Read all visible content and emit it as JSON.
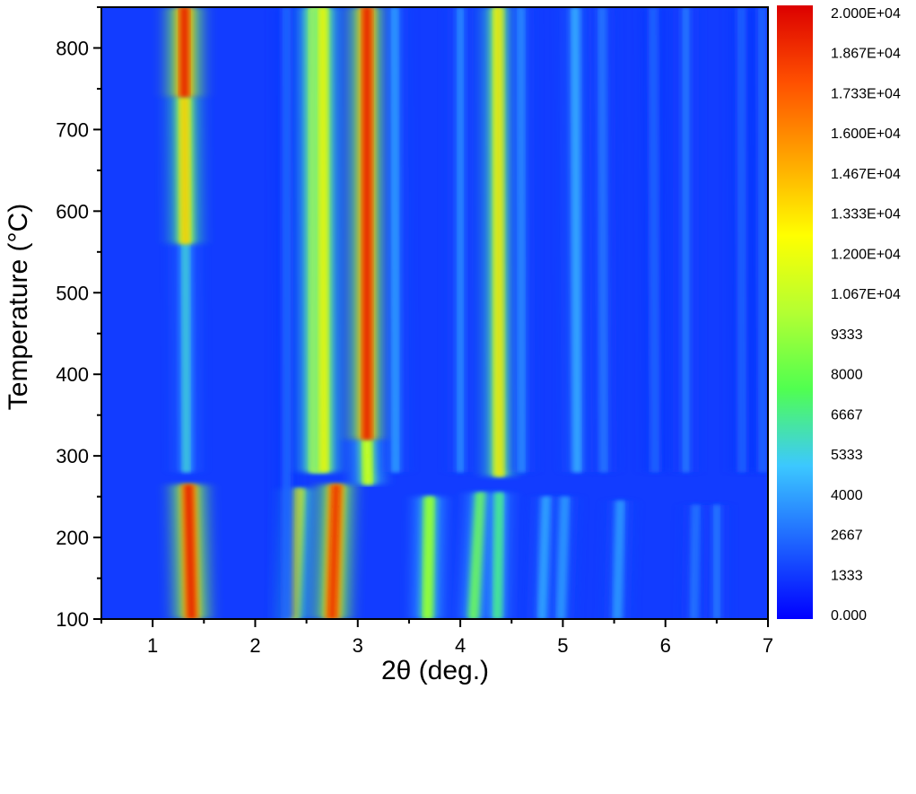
{
  "chart_data": {
    "type": "heatmap",
    "title": "",
    "xlabel": "2θ (deg.)",
    "ylabel": "Temperature (°C)",
    "xlim": [
      0.5,
      7
    ],
    "ylim": [
      100,
      850
    ],
    "x_ticks": [
      "1",
      "2",
      "3",
      "4",
      "5",
      "6",
      "7"
    ],
    "x_tick_values": [
      1,
      2,
      3,
      4,
      5,
      6,
      7
    ],
    "y_ticks": [
      "100",
      "200",
      "300",
      "400",
      "500",
      "600",
      "700",
      "800"
    ],
    "y_tick_values": [
      100,
      200,
      300,
      400,
      500,
      600,
      700,
      800
    ],
    "colorbar": {
      "min": 0,
      "max": 20000,
      "labels": [
        "2.000E+04",
        "1.867E+04",
        "1.733E+04",
        "1.600E+04",
        "1.467E+04",
        "1.333E+04",
        "1.200E+04",
        "1.067E+04",
        "9333",
        "8000",
        "6667",
        "5333",
        "4000",
        "2667",
        "1333",
        "0.000"
      ],
      "label_values": [
        20000,
        18670,
        17330,
        16000,
        14670,
        13330,
        12000,
        10670,
        9333,
        8000,
        6667,
        5333,
        4000,
        2667,
        1333,
        0
      ],
      "colors": [
        "#0000ff",
        "#1e64ff",
        "#3cc8ff",
        "#50ff50",
        "#b4ff32",
        "#ffff00",
        "#ffa500",
        "#ff5000",
        "#dc0000"
      ]
    },
    "background_intensity": 1500,
    "peaks": [
      {
        "x_start": 1.38,
        "x_end": 1.35,
        "y_start": 100,
        "y_end": 265,
        "intensity": 20000
      },
      {
        "x_start": 1.33,
        "x_end": 1.32,
        "y_start": 280,
        "y_end": 560,
        "intensity": 6000
      },
      {
        "x_start": 1.32,
        "x_end": 1.31,
        "y_start": 560,
        "y_end": 740,
        "intensity": 14500
      },
      {
        "x_start": 1.31,
        "x_end": 1.31,
        "y_start": 740,
        "y_end": 850,
        "intensity": 20000
      },
      {
        "x_start": 2.37,
        "x_end": 2.42,
        "y_start": 100,
        "y_end": 260,
        "intensity": 13000
      },
      {
        "x_start": 2.31,
        "x_end": 2.3,
        "y_start": 100,
        "y_end": 850,
        "intensity": 3000
      },
      {
        "x_start": 2.75,
        "x_end": 2.79,
        "y_start": 100,
        "y_end": 265,
        "intensity": 19500
      },
      {
        "x_start": 2.58,
        "x_end": 2.57,
        "y_start": 280,
        "y_end": 850,
        "intensity": 12500
      },
      {
        "x_start": 2.67,
        "x_end": 2.66,
        "y_start": 280,
        "y_end": 850,
        "intensity": 13000
      },
      {
        "x_start": 3.1,
        "x_end": 3.09,
        "y_start": 265,
        "y_end": 320,
        "intensity": 12000
      },
      {
        "x_start": 3.09,
        "x_end": 3.09,
        "y_start": 320,
        "y_end": 850,
        "intensity": 20000
      },
      {
        "x_start": 3.37,
        "x_end": 3.36,
        "y_start": 280,
        "y_end": 850,
        "intensity": 4500
      },
      {
        "x_start": 3.68,
        "x_end": 3.7,
        "y_start": 100,
        "y_end": 250,
        "intensity": 10500
      },
      {
        "x_start": 4.0,
        "x_end": 4.0,
        "y_start": 280,
        "y_end": 850,
        "intensity": 4000
      },
      {
        "x_start": 4.13,
        "x_end": 4.2,
        "y_start": 100,
        "y_end": 255,
        "intensity": 9000
      },
      {
        "x_start": 4.36,
        "x_end": 4.38,
        "y_start": 100,
        "y_end": 255,
        "intensity": 7500
      },
      {
        "x_start": 4.38,
        "x_end": 4.37,
        "y_start": 275,
        "y_end": 850,
        "intensity": 13500
      },
      {
        "x_start": 4.6,
        "x_end": 4.59,
        "y_start": 280,
        "y_end": 850,
        "intensity": 4000
      },
      {
        "x_start": 4.8,
        "x_end": 4.84,
        "y_start": 100,
        "y_end": 250,
        "intensity": 5000
      },
      {
        "x_start": 4.98,
        "x_end": 5.02,
        "y_start": 100,
        "y_end": 250,
        "intensity": 4500
      },
      {
        "x_start": 5.14,
        "x_end": 5.12,
        "y_start": 280,
        "y_end": 850,
        "intensity": 5000
      },
      {
        "x_start": 5.4,
        "x_end": 5.38,
        "y_start": 280,
        "y_end": 850,
        "intensity": 3500
      },
      {
        "x_start": 5.53,
        "x_end": 5.56,
        "y_start": 100,
        "y_end": 245,
        "intensity": 4500
      },
      {
        "x_start": 5.9,
        "x_end": 5.88,
        "y_start": 280,
        "y_end": 850,
        "intensity": 3000
      },
      {
        "x_start": 6.2,
        "x_end": 6.2,
        "y_start": 280,
        "y_end": 850,
        "intensity": 3500
      },
      {
        "x_start": 6.28,
        "x_end": 6.3,
        "y_start": 100,
        "y_end": 240,
        "intensity": 3500
      },
      {
        "x_start": 6.5,
        "x_end": 6.5,
        "y_start": 100,
        "y_end": 240,
        "intensity": 3500
      },
      {
        "x_start": 6.75,
        "x_end": 6.74,
        "y_start": 280,
        "y_end": 850,
        "intensity": 3000
      },
      {
        "x_start": 6.95,
        "x_end": 6.94,
        "y_start": 280,
        "y_end": 850,
        "intensity": 3000
      }
    ]
  }
}
